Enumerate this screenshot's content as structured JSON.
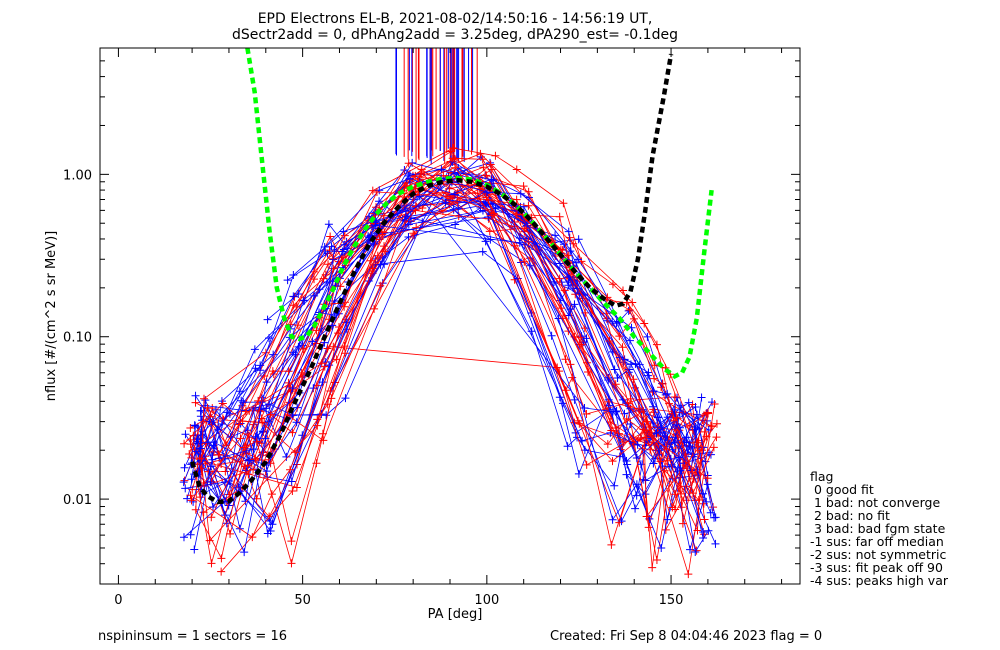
{
  "chart_data": {
    "type": "scatter",
    "title": "EPD Electrons EL-B, 2021-08-02/14:50:16 - 14:56:19 UT,",
    "subtitle": "dSectr2add = 0, dPhAng2add = 3.25deg, dPA290_est=  -0.1deg",
    "xlabel": "PA [deg]",
    "ylabel": "nflux [#/(cm^2 s sr MeV)]",
    "xlim": [
      -5,
      185
    ],
    "ylim": [
      0.003,
      6.0
    ],
    "yscale": "log",
    "xticks": [
      {
        "value": 0,
        "label": "0"
      },
      {
        "value": 50,
        "label": "50"
      },
      {
        "value": 100,
        "label": "100"
      },
      {
        "value": 150,
        "label": "150"
      }
    ],
    "yticks": [
      {
        "value": 0.01,
        "label": "0.01"
      },
      {
        "value": 0.1,
        "label": "0.10"
      },
      {
        "value": 1.0,
        "label": "1.00"
      }
    ],
    "series": [
      {
        "color": "#00ff00",
        "style": "dashed-thick",
        "points": [
          [
            35,
            6.0
          ],
          [
            37,
            3.2
          ],
          [
            39,
            1.2
          ],
          [
            41,
            0.45
          ],
          [
            43,
            0.2
          ],
          [
            45,
            0.13
          ],
          [
            47,
            0.1
          ],
          [
            49,
            0.097
          ],
          [
            51,
            0.1
          ],
          [
            53,
            0.115
          ],
          [
            55,
            0.14
          ],
          [
            58,
            0.19
          ],
          [
            61,
            0.27
          ],
          [
            64,
            0.36
          ],
          [
            67,
            0.46
          ],
          [
            70,
            0.57
          ],
          [
            73,
            0.67
          ],
          [
            76,
            0.76
          ],
          [
            80,
            0.84
          ],
          [
            84,
            0.9
          ],
          [
            88,
            0.94
          ],
          [
            92,
            0.95
          ],
          [
            96,
            0.93
          ],
          [
            100,
            0.86
          ],
          [
            104,
            0.76
          ],
          [
            108,
            0.64
          ],
          [
            112,
            0.52
          ],
          [
            116,
            0.41
          ],
          [
            120,
            0.32
          ],
          [
            124,
            0.25
          ],
          [
            128,
            0.2
          ],
          [
            132,
            0.16
          ],
          [
            136,
            0.13
          ],
          [
            140,
            0.1
          ],
          [
            144,
            0.08
          ],
          [
            148,
            0.064
          ],
          [
            151,
            0.057
          ],
          [
            153,
            0.06
          ],
          [
            155,
            0.075
          ],
          [
            157,
            0.13
          ],
          [
            159,
            0.33
          ],
          [
            161,
            0.8
          ]
        ]
      },
      {
        "color": "#000000",
        "style": "dashed-thick",
        "points": [
          [
            20,
            0.017
          ],
          [
            22,
            0.012
          ],
          [
            24,
            0.0105
          ],
          [
            27,
            0.0096
          ],
          [
            30,
            0.0097
          ],
          [
            33,
            0.011
          ],
          [
            36,
            0.013
          ],
          [
            40,
            0.017
          ],
          [
            44,
            0.025
          ],
          [
            48,
            0.04
          ],
          [
            52,
            0.062
          ],
          [
            56,
            0.1
          ],
          [
            60,
            0.16
          ],
          [
            64,
            0.25
          ],
          [
            68,
            0.37
          ],
          [
            72,
            0.5
          ],
          [
            76,
            0.63
          ],
          [
            80,
            0.76
          ],
          [
            84,
            0.85
          ],
          [
            88,
            0.9
          ],
          [
            92,
            0.92
          ],
          [
            96,
            0.9
          ],
          [
            100,
            0.84
          ],
          [
            104,
            0.75
          ],
          [
            108,
            0.64
          ],
          [
            112,
            0.52
          ],
          [
            116,
            0.41
          ],
          [
            120,
            0.32
          ],
          [
            124,
            0.25
          ],
          [
            128,
            0.2
          ],
          [
            132,
            0.17
          ],
          [
            135,
            0.155
          ],
          [
            137,
            0.16
          ],
          [
            139,
            0.19
          ],
          [
            141,
            0.3
          ],
          [
            143,
            0.6
          ],
          [
            145,
            1.3
          ],
          [
            148,
            3.0
          ],
          [
            150,
            5.5
          ]
        ]
      }
    ],
    "data_traces": {
      "colors": [
        "#ff0000",
        "#0000ff"
      ],
      "count": 60,
      "x_range": [
        18,
        162
      ],
      "peak_at_x": 90,
      "peak_value": 0.9,
      "marker": "plus"
    },
    "vertical_lines": {
      "x_range": [
        75,
        98
      ],
      "top": 6.0,
      "bottom": 1.2,
      "colors": [
        "#ff0000",
        "#0000ff"
      ]
    }
  },
  "footer": {
    "left": "nspininsum =  1  sectors = 16",
    "right": "Created: Fri Sep  8 04:04:46 2023   flag = 0"
  },
  "flag_legend": {
    "title": "flag",
    "items": [
      " 0 good fit",
      " 1 bad: not converge",
      " 2 bad: no fit",
      " 3 bad: bad fgm state",
      "-1 sus: far off median",
      "-2 sus: not symmetric",
      "-3 sus: fit peak off 90",
      "-4 sus: peaks high var"
    ]
  }
}
